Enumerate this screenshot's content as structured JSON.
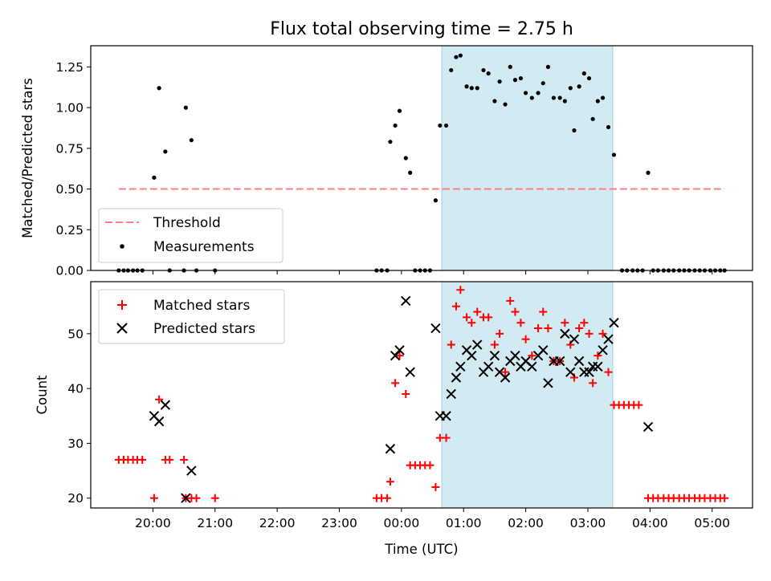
{
  "chart_data": {
    "type": "scatter",
    "title": "Flux total observing time = 2.75 h",
    "xlabel": "Time (UTC)",
    "xticks": [
      "20:00",
      "21:00",
      "22:00",
      "23:00",
      "00:00",
      "01:00",
      "02:00",
      "03:00",
      "04:00",
      "05:00"
    ],
    "xlim_hours": [
      19.0,
      29.65
    ],
    "shaded_region_hours": [
      24.65,
      27.4
    ],
    "shade_color": "#add8e6",
    "panels": [
      {
        "ylabel": "Matched/Predicted stars",
        "ylim": [
          0,
          1.38
        ],
        "yticks": [
          "0.00",
          "0.25",
          "0.50",
          "0.75",
          "1.00",
          "1.25"
        ],
        "legend_position": "lower-left",
        "threshold": {
          "name": "Threshold",
          "value": 0.5,
          "x_range": [
            19.45,
            29.2
          ],
          "color": "#ff7f7f",
          "style": "dashed"
        },
        "series": [
          {
            "name": "Measurements",
            "marker": "dot",
            "color": "#000000",
            "points": [
              [
                19.45,
                0
              ],
              [
                19.53,
                0
              ],
              [
                19.6,
                0
              ],
              [
                19.68,
                0
              ],
              [
                19.75,
                0
              ],
              [
                19.83,
                0
              ],
              [
                20.02,
                0.57
              ],
              [
                20.1,
                1.12
              ],
              [
                20.2,
                0.73
              ],
              [
                20.27,
                0
              ],
              [
                20.5,
                0
              ],
              [
                20.53,
                1.0
              ],
              [
                20.62,
                0.8
              ],
              [
                20.7,
                0
              ],
              [
                21.0,
                0
              ],
              [
                23.6,
                0
              ],
              [
                23.68,
                0
              ],
              [
                23.77,
                0
              ],
              [
                23.82,
                0.79
              ],
              [
                23.9,
                0.89
              ],
              [
                23.97,
                0.98
              ],
              [
                24.07,
                0.69
              ],
              [
                24.14,
                0.6
              ],
              [
                24.22,
                0
              ],
              [
                24.3,
                0
              ],
              [
                24.38,
                0
              ],
              [
                24.46,
                0
              ],
              [
                24.55,
                0.43
              ],
              [
                24.62,
                0.89
              ],
              [
                24.72,
                0.89
              ],
              [
                24.8,
                1.23
              ],
              [
                24.88,
                1.31
              ],
              [
                24.95,
                1.32
              ],
              [
                25.05,
                1.13
              ],
              [
                25.13,
                1.12
              ],
              [
                25.22,
                1.12
              ],
              [
                25.32,
                1.23
              ],
              [
                25.4,
                1.21
              ],
              [
                25.5,
                1.04
              ],
              [
                25.58,
                1.16
              ],
              [
                25.67,
                1.02
              ],
              [
                25.75,
                1.25
              ],
              [
                25.83,
                1.17
              ],
              [
                25.92,
                1.18
              ],
              [
                26.0,
                1.09
              ],
              [
                26.1,
                1.06
              ],
              [
                26.2,
                1.09
              ],
              [
                26.28,
                1.15
              ],
              [
                26.36,
                1.25
              ],
              [
                26.45,
                1.06
              ],
              [
                26.55,
                1.06
              ],
              [
                26.63,
                1.04
              ],
              [
                26.72,
                1.12
              ],
              [
                26.78,
                0.86
              ],
              [
                26.86,
                1.13
              ],
              [
                26.94,
                1.21
              ],
              [
                27.02,
                1.18
              ],
              [
                27.08,
                0.93
              ],
              [
                27.16,
                1.04
              ],
              [
                27.24,
                1.06
              ],
              [
                27.33,
                0.88
              ],
              [
                27.42,
                0.71
              ],
              [
                27.55,
                0
              ],
              [
                27.63,
                0
              ],
              [
                27.72,
                0
              ],
              [
                27.8,
                0
              ],
              [
                27.88,
                0
              ],
              [
                27.97,
                0.6
              ],
              [
                28.05,
                0
              ],
              [
                28.13,
                0
              ],
              [
                28.22,
                0
              ],
              [
                28.3,
                0
              ],
              [
                28.38,
                0
              ],
              [
                28.47,
                0
              ],
              [
                28.55,
                0
              ],
              [
                28.63,
                0
              ],
              [
                28.72,
                0
              ],
              [
                28.8,
                0
              ],
              [
                28.88,
                0
              ],
              [
                28.97,
                0
              ],
              [
                29.05,
                0
              ],
              [
                29.13,
                0
              ],
              [
                29.2,
                0
              ]
            ]
          }
        ]
      },
      {
        "ylabel": "Count",
        "ylim": [
          18.2,
          59.5
        ],
        "yticks": [
          "20",
          "30",
          "40",
          "50"
        ],
        "legend_position": "upper-left",
        "series": [
          {
            "name": "Matched stars",
            "marker": "plus",
            "color": "#ff0000",
            "points": [
              [
                19.45,
                27
              ],
              [
                19.53,
                27
              ],
              [
                19.6,
                27
              ],
              [
                19.68,
                27
              ],
              [
                19.75,
                27
              ],
              [
                19.83,
                27
              ],
              [
                20.02,
                20
              ],
              [
                20.1,
                38
              ],
              [
                20.2,
                27
              ],
              [
                20.27,
                27
              ],
              [
                20.5,
                27
              ],
              [
                20.53,
                20
              ],
              [
                20.62,
                20
              ],
              [
                20.7,
                20
              ],
              [
                21.0,
                20
              ],
              [
                23.6,
                20
              ],
              [
                23.68,
                20
              ],
              [
                23.77,
                20
              ],
              [
                23.82,
                23
              ],
              [
                23.9,
                41
              ],
              [
                23.97,
                46
              ],
              [
                24.07,
                39
              ],
              [
                24.14,
                26
              ],
              [
                24.22,
                26
              ],
              [
                24.3,
                26
              ],
              [
                24.38,
                26
              ],
              [
                24.46,
                26
              ],
              [
                24.55,
                22
              ],
              [
                24.62,
                31
              ],
              [
                24.72,
                31
              ],
              [
                24.8,
                48
              ],
              [
                24.88,
                55
              ],
              [
                24.95,
                58
              ],
              [
                25.05,
                53
              ],
              [
                25.13,
                52
              ],
              [
                25.22,
                54
              ],
              [
                25.32,
                53
              ],
              [
                25.4,
                53
              ],
              [
                25.5,
                48
              ],
              [
                25.58,
                50
              ],
              [
                25.67,
                43
              ],
              [
                25.75,
                56
              ],
              [
                25.83,
                54
              ],
              [
                25.92,
                52
              ],
              [
                26.0,
                49
              ],
              [
                26.1,
                46
              ],
              [
                26.2,
                51
              ],
              [
                26.28,
                54
              ],
              [
                26.36,
                51
              ],
              [
                26.45,
                45
              ],
              [
                26.55,
                45
              ],
              [
                26.63,
                52
              ],
              [
                26.72,
                48
              ],
              [
                26.78,
                42
              ],
              [
                26.86,
                51
              ],
              [
                26.94,
                52
              ],
              [
                27.02,
                50
              ],
              [
                27.08,
                41
              ],
              [
                27.16,
                46
              ],
              [
                27.24,
                50
              ],
              [
                27.33,
                43
              ],
              [
                27.42,
                37
              ],
              [
                27.5,
                37
              ],
              [
                27.58,
                37
              ],
              [
                27.66,
                37
              ],
              [
                27.74,
                37
              ],
              [
                27.82,
                37
              ],
              [
                27.97,
                20
              ],
              [
                28.05,
                20
              ],
              [
                28.13,
                20
              ],
              [
                28.22,
                20
              ],
              [
                28.3,
                20
              ],
              [
                28.38,
                20
              ],
              [
                28.47,
                20
              ],
              [
                28.55,
                20
              ],
              [
                28.63,
                20
              ],
              [
                28.72,
                20
              ],
              [
                28.8,
                20
              ],
              [
                28.88,
                20
              ],
              [
                28.97,
                20
              ],
              [
                29.05,
                20
              ],
              [
                29.13,
                20
              ],
              [
                29.2,
                20
              ]
            ]
          },
          {
            "name": "Predicted stars",
            "marker": "x",
            "color": "#000000",
            "points": [
              [
                20.02,
                35
              ],
              [
                20.1,
                34
              ],
              [
                20.2,
                37
              ],
              [
                20.53,
                20
              ],
              [
                20.62,
                25
              ],
              [
                23.82,
                29
              ],
              [
                23.9,
                46
              ],
              [
                23.97,
                47
              ],
              [
                24.07,
                56
              ],
              [
                24.14,
                43
              ],
              [
                24.55,
                51
              ],
              [
                24.62,
                35
              ],
              [
                24.72,
                35
              ],
              [
                24.8,
                39
              ],
              [
                24.88,
                42
              ],
              [
                24.95,
                44
              ],
              [
                25.05,
                47
              ],
              [
                25.13,
                46
              ],
              [
                25.22,
                48
              ],
              [
                25.32,
                43
              ],
              [
                25.4,
                44
              ],
              [
                25.5,
                46
              ],
              [
                25.58,
                43
              ],
              [
                25.67,
                42
              ],
              [
                25.75,
                45
              ],
              [
                25.83,
                46
              ],
              [
                25.92,
                44
              ],
              [
                26.0,
                45
              ],
              [
                26.1,
                44
              ],
              [
                26.2,
                46
              ],
              [
                26.28,
                47
              ],
              [
                26.36,
                41
              ],
              [
                26.45,
                45
              ],
              [
                26.55,
                45
              ],
              [
                26.63,
                50
              ],
              [
                26.72,
                43
              ],
              [
                26.78,
                49
              ],
              [
                26.86,
                45
              ],
              [
                26.94,
                43
              ],
              [
                27.02,
                43
              ],
              [
                27.08,
                44
              ],
              [
                27.16,
                44
              ],
              [
                27.24,
                47
              ],
              [
                27.33,
                49
              ],
              [
                27.42,
                52
              ],
              [
                27.97,
                33
              ]
            ]
          }
        ]
      }
    ]
  }
}
